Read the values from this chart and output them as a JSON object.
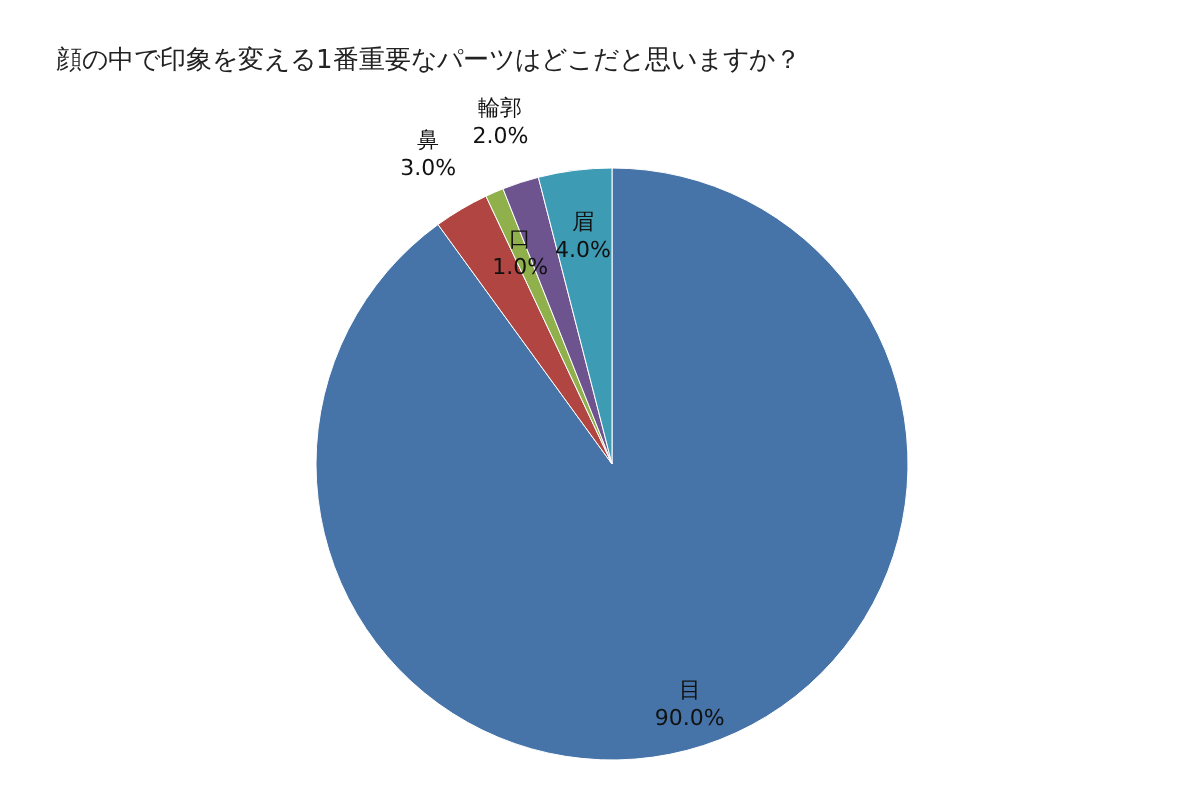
{
  "chart_data": {
    "type": "pie",
    "title": "顔の中で印象を変える1番重要なパーツはどこだと思いますか？",
    "categories": [
      "目",
      "鼻",
      "口",
      "輪郭",
      "眉"
    ],
    "values": [
      90,
      3,
      1,
      2,
      4
    ],
    "colors": [
      "#4674a8",
      "#b14542",
      "#8fb04a",
      "#6e548f",
      "#3e9bb4"
    ],
    "value_labels": [
      "90.0%",
      "3.0%",
      "1.0%",
      "2.0%",
      "4.0%"
    ]
  }
}
